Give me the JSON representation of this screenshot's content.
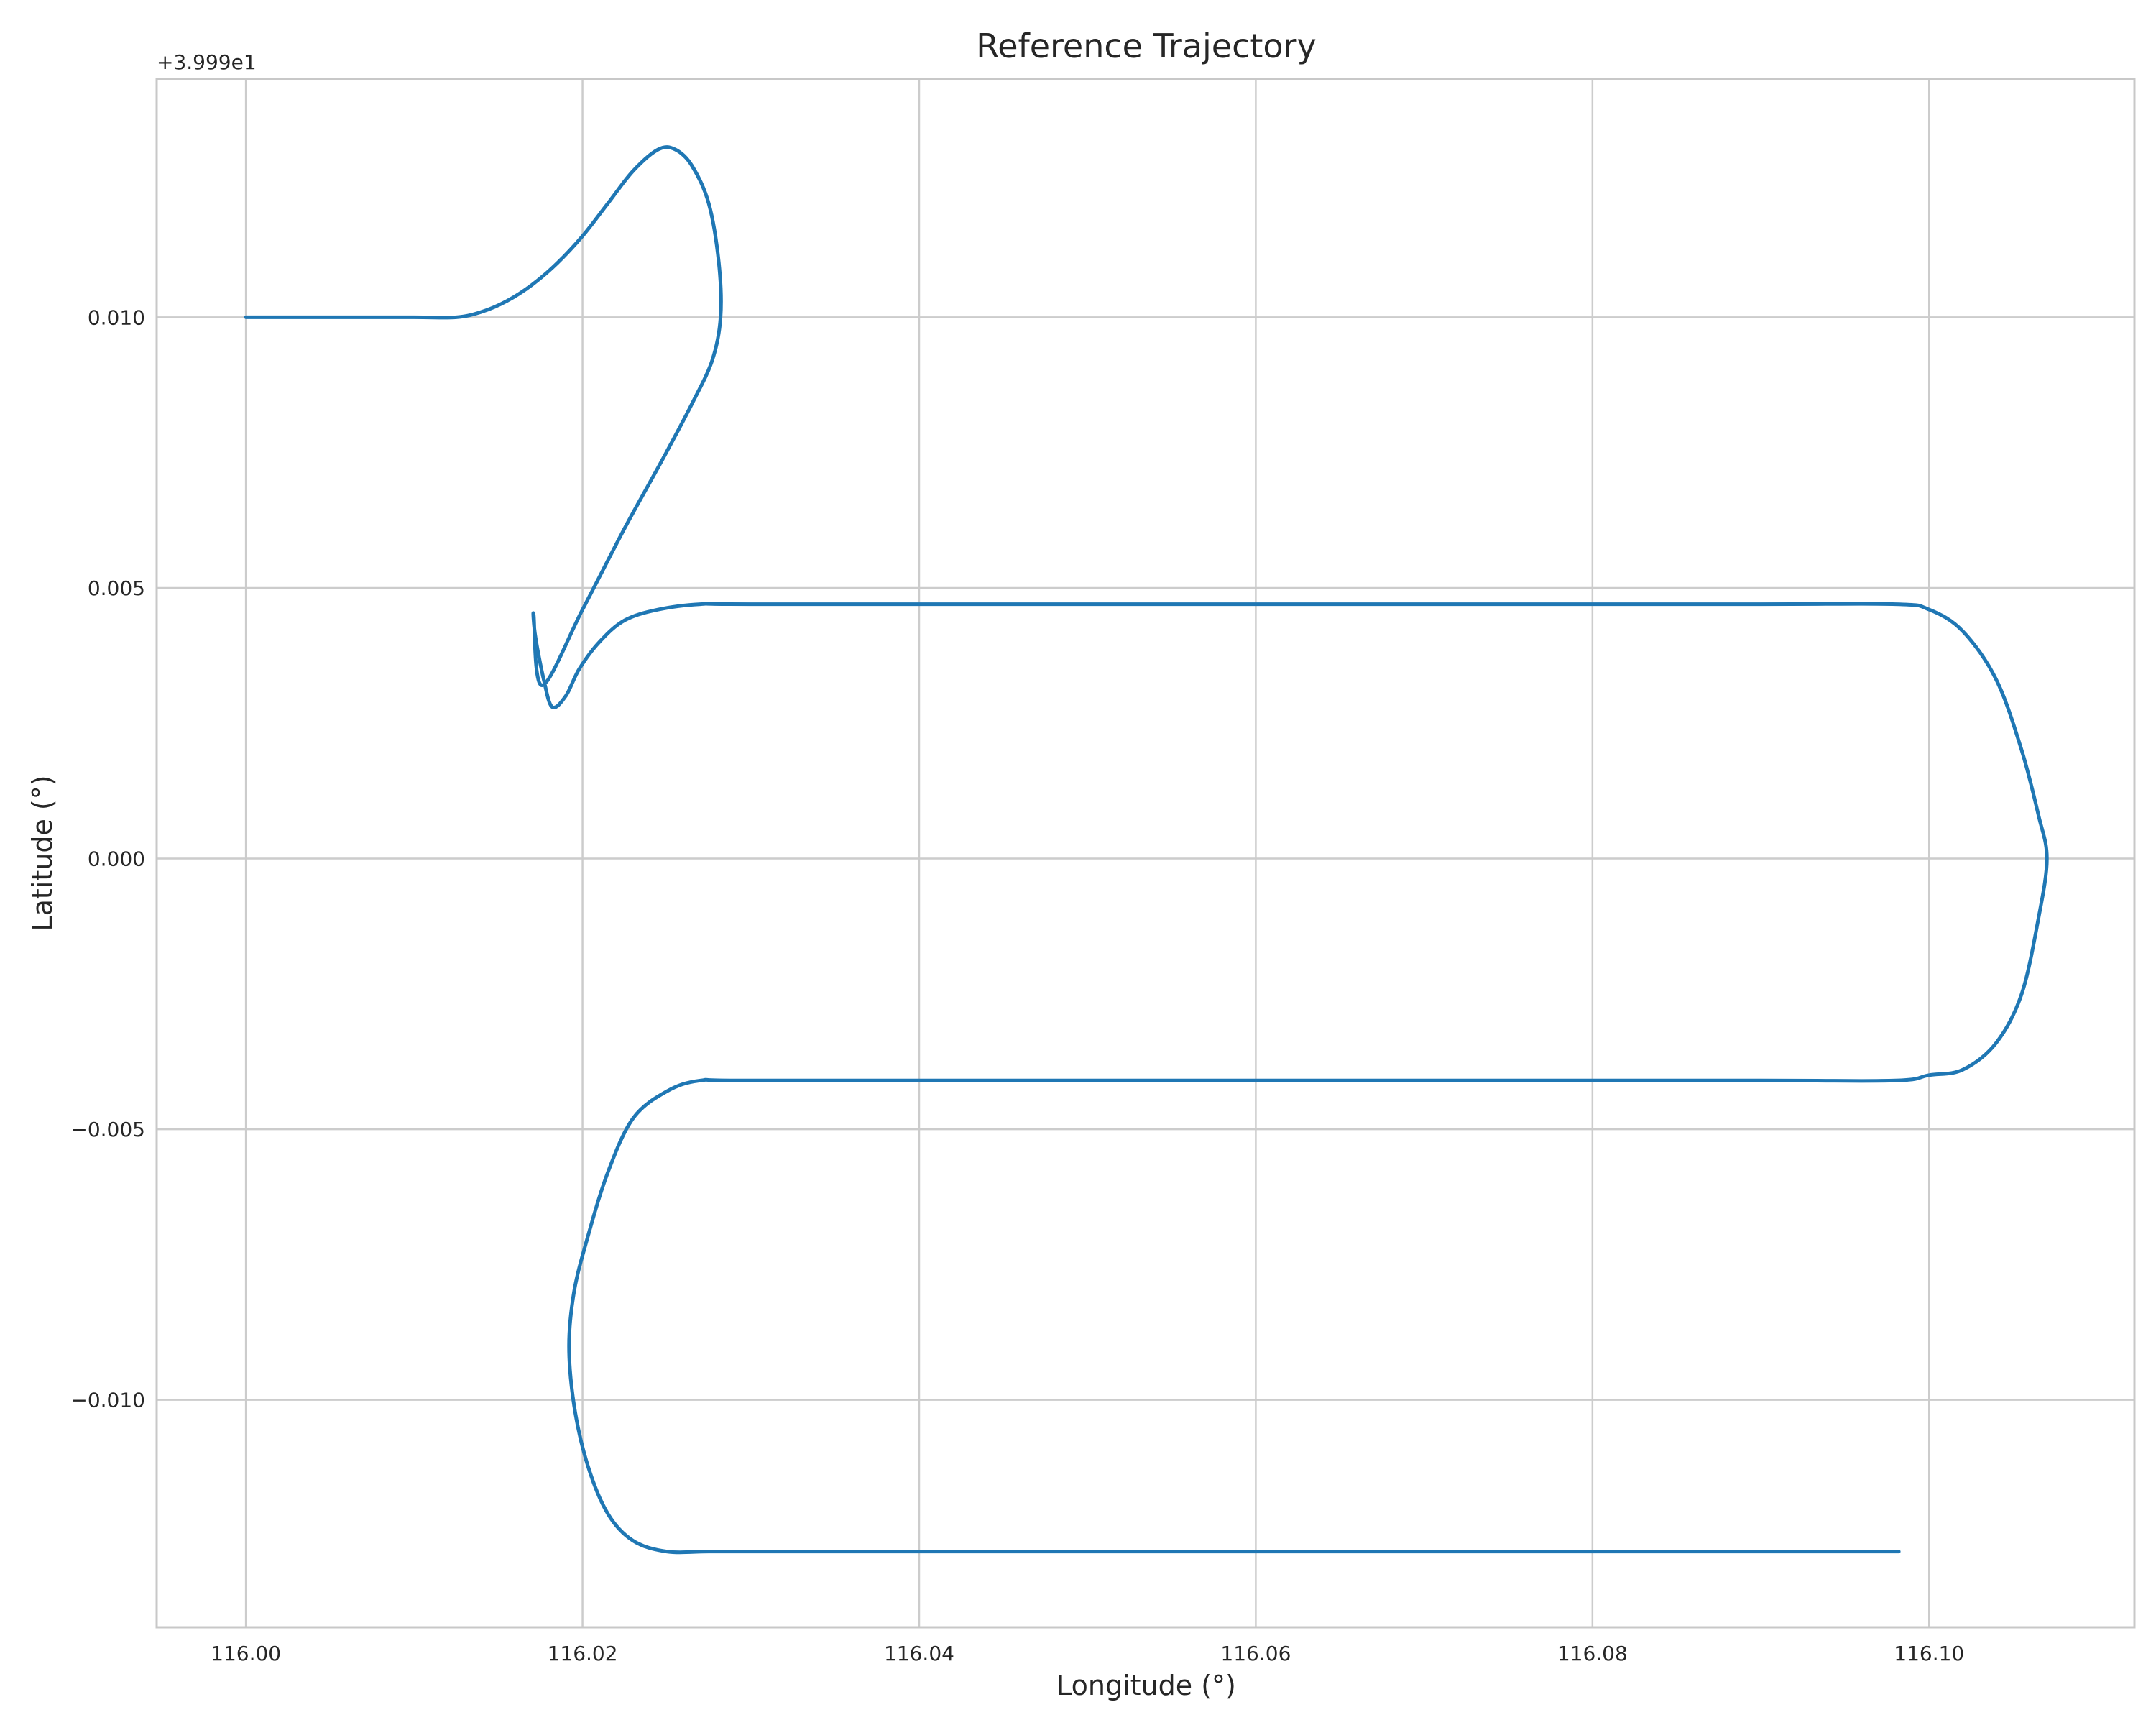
{
  "chart_data": {
    "type": "line",
    "title": "Reference Trajectory",
    "xlabel": "Longitude (°)",
    "ylabel": "Latitude (°)",
    "y_offset_label": "+3.999e1",
    "xlim": [
      115.9947,
      116.1122
    ],
    "ylim": [
      -0.0142,
      0.0144
    ],
    "x_ticks": [
      116.0,
      116.02,
      116.04,
      116.06,
      116.08,
      116.1
    ],
    "x_tick_labels": [
      "116.00",
      "116.02",
      "116.04",
      "116.06",
      "116.08",
      "116.10"
    ],
    "y_ticks": [
      0.01,
      0.005,
      0.0,
      -0.005,
      -0.01
    ],
    "y_tick_labels": [
      "0.010",
      "0.005",
      "0.000",
      "−0.005",
      "−0.010"
    ],
    "grid": true,
    "color": "#1f77b4",
    "series": [
      {
        "x": [
          116.0,
          116.005,
          116.01,
          116.0125,
          116.014,
          116.0155,
          116.017,
          116.0185,
          116.02,
          116.0215,
          116.023,
          116.0245,
          116.0255,
          116.0265,
          116.0275,
          116.0281,
          116.0282,
          116.0277,
          116.0265,
          116.0248,
          116.0225,
          116.02,
          116.0176,
          116.0171,
          116.0172,
          116.0177,
          116.0182,
          116.019,
          116.0198,
          116.021,
          116.0225,
          116.0245,
          116.027,
          116.03,
          116.05,
          116.07,
          116.09,
          116.098,
          116.1,
          116.102,
          116.104,
          116.1055,
          116.1065,
          116.107,
          116.1065,
          116.1055,
          116.104,
          116.102,
          116.1,
          116.098,
          116.09,
          116.07,
          116.05,
          116.03,
          116.027,
          116.025,
          116.023,
          116.0215,
          116.0203,
          116.0195,
          116.0192,
          116.0195,
          116.0203,
          116.0215,
          116.023,
          116.025,
          116.0275,
          116.03,
          116.05,
          116.07,
          116.09,
          116.0982
        ],
        "y": [
          0.01,
          0.01,
          0.01,
          0.01,
          0.0101,
          0.0103,
          0.0106,
          0.011,
          0.0115,
          0.0121,
          0.0127,
          0.0131,
          0.0131,
          0.0128,
          0.0121,
          0.011,
          0.01,
          0.0092,
          0.0084,
          0.0074,
          0.0061,
          0.0046,
          0.0032,
          0.0045,
          0.0041,
          0.0033,
          0.0028,
          0.003,
          0.0035,
          0.004,
          0.0044,
          0.0046,
          0.0047,
          0.0047,
          0.0047,
          0.0047,
          0.0047,
          0.0047,
          0.0046,
          0.0042,
          0.0033,
          0.002,
          0.0008,
          0.0,
          -0.0011,
          -0.0025,
          -0.0034,
          -0.0039,
          -0.004,
          -0.0041,
          -0.0041,
          -0.0041,
          -0.0041,
          -0.0041,
          -0.0041,
          -0.0043,
          -0.0048,
          -0.0058,
          -0.007,
          -0.008,
          -0.009,
          -0.0101,
          -0.0112,
          -0.0121,
          -0.0126,
          -0.0128,
          -0.0128,
          -0.0128,
          -0.0128,
          -0.0128,
          -0.0128,
          -0.0128
        ]
      }
    ]
  }
}
